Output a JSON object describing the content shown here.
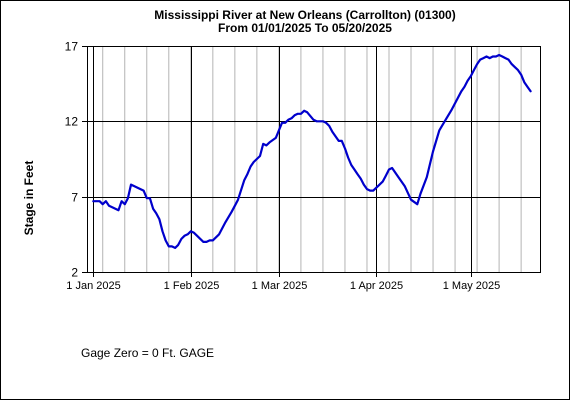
{
  "chart_data": {
    "type": "line",
    "title": "Mississippi River at New Orleans (Carrollton) (01300)",
    "subtitle": "From 01/01/2025 To 05/20/2025",
    "xlabel": "",
    "ylabel": "Stage in Feet",
    "ylim": [
      2,
      17
    ],
    "yticks": [
      2,
      7,
      12,
      17
    ],
    "xlim": [
      "2024-12-30",
      "2025-05-23"
    ],
    "xticks": [
      {
        "date": "2025-01-01",
        "label": "1 Jan 2025"
      },
      {
        "date": "2025-02-01",
        "label": "1 Feb 2025"
      },
      {
        "date": "2025-03-01",
        "label": "1 Mar 2025"
      },
      {
        "date": "2025-04-01",
        "label": "1 Apr 2025"
      },
      {
        "date": "2025-05-01",
        "label": "1 May 2025"
      }
    ],
    "grid": true,
    "line_color": "#0000cc",
    "series": [
      {
        "x": [
          "2025-01-01",
          "2025-01-03",
          "2025-01-04",
          "2025-01-05",
          "2025-01-06",
          "2025-01-07",
          "2025-01-09",
          "2025-01-10",
          "2025-01-11",
          "2025-01-12",
          "2025-01-13",
          "2025-01-14",
          "2025-01-15",
          "2025-01-17",
          "2025-01-18",
          "2025-01-19",
          "2025-01-20",
          "2025-01-21",
          "2025-01-22",
          "2025-01-23",
          "2025-01-24",
          "2025-01-25",
          "2025-01-26",
          "2025-01-27",
          "2025-01-28",
          "2025-01-29",
          "2025-01-30",
          "2025-01-31",
          "2025-02-01",
          "2025-02-02",
          "2025-02-03",
          "2025-02-04",
          "2025-02-05",
          "2025-02-06",
          "2025-02-07",
          "2025-02-08",
          "2025-02-10",
          "2025-02-12",
          "2025-02-14",
          "2025-02-15",
          "2025-02-16",
          "2025-02-18",
          "2025-02-19",
          "2025-02-20",
          "2025-02-21",
          "2025-02-23",
          "2025-02-24",
          "2025-02-25",
          "2025-02-26",
          "2025-02-28",
          "2025-03-02",
          "2025-03-03",
          "2025-03-04",
          "2025-03-05",
          "2025-03-06",
          "2025-03-07",
          "2025-03-08",
          "2025-03-09",
          "2025-03-10",
          "2025-03-12",
          "2025-03-13",
          "2025-03-15",
          "2025-03-16",
          "2025-03-17",
          "2025-03-18",
          "2025-03-20",
          "2025-03-21",
          "2025-03-22",
          "2025-03-23",
          "2025-03-24",
          "2025-03-25",
          "2025-03-26",
          "2025-03-27",
          "2025-03-28",
          "2025-03-29",
          "2025-03-30",
          "2025-03-31",
          "2025-04-02",
          "2025-04-03",
          "2025-04-04",
          "2025-04-05",
          "2025-04-06",
          "2025-04-08",
          "2025-04-10",
          "2025-04-12",
          "2025-04-14",
          "2025-04-15",
          "2025-04-17",
          "2025-04-19",
          "2025-04-21",
          "2025-04-23",
          "2025-04-25",
          "2025-04-27",
          "2025-04-28",
          "2025-04-29",
          "2025-04-30",
          "2025-05-01",
          "2025-05-02",
          "2025-05-03",
          "2025-05-04",
          "2025-05-05",
          "2025-05-06",
          "2025-05-07",
          "2025-05-08",
          "2025-05-09",
          "2025-05-10",
          "2025-05-11",
          "2025-05-12",
          "2025-05-13",
          "2025-05-14",
          "2025-05-15",
          "2025-05-16",
          "2025-05-17",
          "2025-05-18",
          "2025-05-19",
          "2025-05-20"
        ],
        "y": [
          6.7,
          6.7,
          6.5,
          6.7,
          6.4,
          6.3,
          6.1,
          6.7,
          6.5,
          6.9,
          7.8,
          7.7,
          7.6,
          7.4,
          6.9,
          6.9,
          6.2,
          5.9,
          5.5,
          4.7,
          4.1,
          3.7,
          3.7,
          3.6,
          3.8,
          4.2,
          4.4,
          4.5,
          4.7,
          4.6,
          4.4,
          4.2,
          4.0,
          4.0,
          4.1,
          4.1,
          4.5,
          5.3,
          6.0,
          6.4,
          6.8,
          8.1,
          8.5,
          9.0,
          9.3,
          9.7,
          10.5,
          10.4,
          10.6,
          10.9,
          11.9,
          11.9,
          12.1,
          12.2,
          12.4,
          12.5,
          12.5,
          12.7,
          12.6,
          12.1,
          12.0,
          12.0,
          11.9,
          11.7,
          11.3,
          10.7,
          10.7,
          10.2,
          9.6,
          9.1,
          8.8,
          8.5,
          8.2,
          7.8,
          7.5,
          7.4,
          7.4,
          7.8,
          8.0,
          8.4,
          8.8,
          8.9,
          8.3,
          7.7,
          6.8,
          6.5,
          7.2,
          8.3,
          10.0,
          11.4,
          12.1,
          12.8,
          13.6,
          14.0,
          14.3,
          14.7,
          15.0,
          15.4,
          15.8,
          16.1,
          16.2,
          16.3,
          16.2,
          16.3,
          16.3,
          16.4,
          16.3,
          16.2,
          16.1,
          15.8,
          15.6,
          15.4,
          15.1,
          14.6,
          14.3,
          14.0
        ]
      }
    ]
  },
  "footer": {
    "gage_note": "Gage Zero = 0 Ft. GAGE"
  }
}
